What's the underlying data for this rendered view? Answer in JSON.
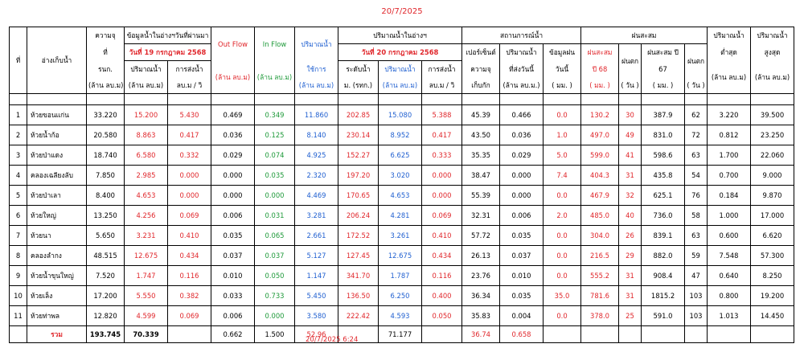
{
  "header_date": "20/7/2025",
  "footer_timestamp": "20/7/2025 6:24",
  "columns": {
    "no": "ที่",
    "reservoir": "อ่างเก็บน้ำ",
    "cap_l1": "ความจุ",
    "cap_l2": "ที่",
    "cap_l3": "รนก.",
    "cap_l4": "(ล้าน ลบ.ม)",
    "prev_group": "ข้อมูลน้ำในอ่างฯวันที่ผ่านมา",
    "prev_date": "วันที่ 19 กรกฎาคม 2568",
    "prev_vol_l1": "ปริมาณน้ำ",
    "prev_vol_l2": "(ล้าน ลบ.ม)",
    "prev_rel_l1": "การส่งน้ำ",
    "prev_rel_l2": "ลบ.ม / วิ",
    "outflow": "Out Flow",
    "outflow_unit": "(ล้าน ลบ.ม)",
    "inflow": "In Flow",
    "inflow_unit": "(ล้าน ลบ.ม)",
    "usable_l1": "ปริมาณน้ำ",
    "usable_l2": "ใช้การ",
    "usable_l3": "(ล้าน ลบ.ม)",
    "curr_group": "ปริมาณน้ำในอ่างฯ",
    "curr_date": "วันที่ 20 กรกฎาคม 2568",
    "level_l1": "ระดับน้ำ",
    "level_l2": "ม. (รทก.)",
    "curr_vol_l1": "ปริมาณน้ำ",
    "curr_vol_l2": "(ล้าน ลบ.ม)",
    "curr_rel_l1": "การส่งน้ำ",
    "curr_rel_l2": "ลบ.ม / วิ",
    "status_group": "สถานการณ์น้ำ",
    "pct_l1": "เปอร์เซ็นต์",
    "pct_l2": "ความจุ",
    "pct_l3": "เก็บกัก",
    "sent_l1": "ปริมาณน้ำ",
    "sent_l2": "ที่ส่งวันนี้",
    "sent_l3": "(ล้าน ลบ.ม.)",
    "rain_today_l1": "ข้อมูลฝน",
    "rain_today_l2": "วันนี้",
    "rain_today_l3": "( มม. )",
    "rain_group": "ฝนสะสม",
    "rain68_l1": "ฝนสะสม",
    "rain68_l2": "ปี 68",
    "rain68_l3": "( มม. )",
    "raindays68_l1": "ฝนตก",
    "raindays68_l2": "( วัน )",
    "rain67_l1": "ฝนสะสม ปี",
    "rain67_l2": "67",
    "rain67_l3": "( มม. )",
    "raindays67_l1": "ฝนตก",
    "raindays67_l2": "( วัน )",
    "min_l1": "ปริมาณน้ำ",
    "min_l2": "ต่ำสุด",
    "min_l3": "(ล้าน ลบ.ม)",
    "max_l1": "ปริมาณน้ำ",
    "max_l2": "สูงสุด",
    "max_l3": "(ล้าน ลบ.ม)"
  },
  "rows": [
    {
      "no": "1",
      "name": "ห้วยขอนแก่น",
      "cap": "33.220",
      "prev_vol": "15.200",
      "prev_rel": "5.430",
      "outflow": "0.469",
      "inflow": "0.349",
      "usable": "11.860",
      "level": "202.85",
      "curr_vol": "15.080",
      "curr_rel": "5.388",
      "pct": "45.39",
      "sent": "0.466",
      "rain_today": "0.0",
      "rain68": "130.2",
      "days68": "30",
      "rain67": "387.9",
      "days67": "62",
      "min": "3.220",
      "max": "39.500"
    },
    {
      "no": "2",
      "name": "ห้วยน้ำก้อ",
      "cap": "20.580",
      "prev_vol": "8.863",
      "prev_rel": "0.417",
      "outflow": "0.036",
      "inflow": "0.125",
      "usable": "8.140",
      "level": "230.14",
      "curr_vol": "8.952",
      "curr_rel": "0.417",
      "pct": "43.50",
      "sent": "0.036",
      "rain_today": "1.0",
      "rain68": "497.0",
      "days68": "49",
      "rain67": "831.0",
      "days67": "72",
      "min": "0.812",
      "max": "23.250"
    },
    {
      "no": "3",
      "name": "ห้วยป่าแดง",
      "cap": "18.740",
      "prev_vol": "6.580",
      "prev_rel": "0.332",
      "outflow": "0.029",
      "inflow": "0.074",
      "usable": "4.925",
      "level": "152.27",
      "curr_vol": "6.625",
      "curr_rel": "0.333",
      "pct": "35.35",
      "sent": "0.029",
      "rain_today": "5.0",
      "rain68": "599.0",
      "days68": "41",
      "rain67": "598.6",
      "days67": "63",
      "min": "1.700",
      "max": "22.060"
    },
    {
      "no": "4",
      "name": "คลองเฉลียงลับ",
      "cap": "7.850",
      "prev_vol": "2.985",
      "prev_rel": "0.000",
      "outflow": "0.000",
      "inflow": "0.035",
      "usable": "2.320",
      "level": "197.20",
      "curr_vol": "3.020",
      "curr_rel": "0.000",
      "pct": "38.47",
      "sent": "0.000",
      "rain_today": "7.4",
      "rain68": "404.3",
      "days68": "31",
      "rain67": "435.8",
      "days67": "54",
      "min": "0.700",
      "max": "9.000"
    },
    {
      "no": "5",
      "name": "ห้วยป่าเลา",
      "cap": "8.400",
      "prev_vol": "4.653",
      "prev_rel": "0.000",
      "outflow": "0.000",
      "inflow": "0.000",
      "usable": "4.469",
      "level": "170.65",
      "curr_vol": "4.653",
      "curr_rel": "0.000",
      "pct": "55.39",
      "sent": "0.000",
      "rain_today": "0.0",
      "rain68": "467.9",
      "days68": "32",
      "rain67": "625.1",
      "days67": "76",
      "min": "0.184",
      "max": "9.870"
    },
    {
      "no": "6",
      "name": "ห้วยใหญ่",
      "cap": "13.250",
      "prev_vol": "4.256",
      "prev_rel": "0.069",
      "outflow": "0.006",
      "inflow": "0.031",
      "usable": "3.281",
      "level": "206.24",
      "curr_vol": "4.281",
      "curr_rel": "0.069",
      "pct": "32.31",
      "sent": "0.006",
      "rain_today": "2.0",
      "rain68": "485.0",
      "days68": "40",
      "rain67": "736.0",
      "days67": "58",
      "min": "1.000",
      "max": "17.000"
    },
    {
      "no": "7",
      "name": "ห้วยนา",
      "cap": "5.650",
      "prev_vol": "3.231",
      "prev_rel": "0.410",
      "outflow": "0.035",
      "inflow": "0.065",
      "usable": "2.661",
      "level": "172.52",
      "curr_vol": "3.261",
      "curr_rel": "0.410",
      "pct": "57.72",
      "sent": "0.035",
      "rain_today": "0.0",
      "rain68": "304.0",
      "days68": "26",
      "rain67": "839.1",
      "days67": "63",
      "min": "0.600",
      "max": "6.620"
    },
    {
      "no": "8",
      "name": "คลองลำกง",
      "cap": "48.515",
      "prev_vol": "12.675",
      "prev_rel": "0.434",
      "outflow": "0.037",
      "inflow": "0.037",
      "usable": "5.127",
      "level": "127.45",
      "curr_vol": "12.675",
      "curr_rel": "0.434",
      "pct": "26.13",
      "sent": "0.037",
      "rain_today": "0.0",
      "rain68": "216.5",
      "days68": "29",
      "rain67": "882.0",
      "days67": "59",
      "min": "7.548",
      "max": "57.300"
    },
    {
      "no": "9",
      "name": "ห้วยน้ำขุนใหญ่",
      "cap": "7.520",
      "prev_vol": "1.747",
      "prev_rel": "0.116",
      "outflow": "0.010",
      "inflow": "0.050",
      "usable": "1.147",
      "level": "341.70",
      "curr_vol": "1.787",
      "curr_rel": "0.116",
      "pct": "23.76",
      "sent": "0.010",
      "rain_today": "0.0",
      "rain68": "555.2",
      "days68": "31",
      "rain67": "908.4",
      "days67": "47",
      "min": "0.640",
      "max": "8.250"
    },
    {
      "no": "10",
      "name": "ห้วยเล็ง",
      "cap": "17.200",
      "prev_vol": "5.550",
      "prev_rel": "0.382",
      "outflow": "0.033",
      "inflow": "0.733",
      "usable": "5.450",
      "level": "136.50",
      "curr_vol": "6.250",
      "curr_rel": "0.400",
      "pct": "36.34",
      "sent": "0.035",
      "rain_today": "35.0",
      "rain68": "781.6",
      "days68": "31",
      "rain67": "1815.2",
      "days67": "103",
      "min": "0.800",
      "max": "19.200"
    },
    {
      "no": "11",
      "name": "ห้วยท่าพล",
      "cap": "12.820",
      "prev_vol": "4.599",
      "prev_rel": "0.069",
      "outflow": "0.006",
      "inflow": "0.000",
      "usable": "3.580",
      "level": "222.42",
      "curr_vol": "4.593",
      "curr_rel": "0.050",
      "pct": "35.83",
      "sent": "0.004",
      "rain_today": "0.0",
      "rain68": "378.0",
      "days68": "25",
      "rain67": "591.0",
      "days67": "103",
      "min": "1.013",
      "max": "14.450"
    }
  ],
  "totals": {
    "label": "รวม",
    "cap": "193.745",
    "prev_vol": "70.339",
    "outflow": "0.662",
    "inflow": "1.500",
    "usable": "52.96",
    "curr_vol": "71.177",
    "pct": "36.74",
    "sent": "0.658"
  },
  "colors": {
    "red": "#e0262b",
    "green": "#1f9a3a",
    "blue": "#1f5fd0"
  }
}
